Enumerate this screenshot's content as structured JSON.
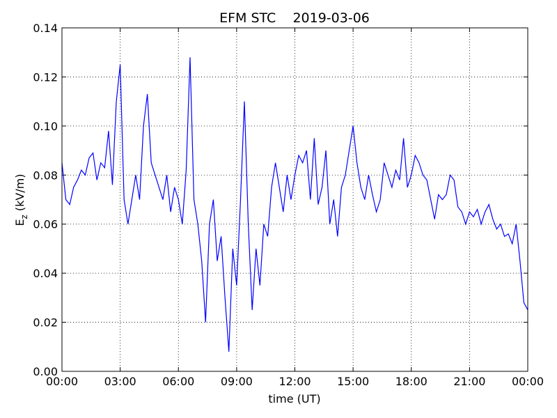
{
  "chart_data": {
    "type": "line",
    "title": "EFM STC    2019-03-06",
    "x_label": "time (UT)",
    "y_label": {
      "main": "E",
      "sub": "z",
      "unit": "(kV/m)"
    },
    "x": [
      0,
      0.2,
      0.4,
      0.6,
      0.8,
      1,
      1.2,
      1.4,
      1.6,
      1.8,
      2,
      2.2,
      2.4,
      2.6,
      2.8,
      3,
      3.2,
      3.4,
      3.6,
      3.8,
      4,
      4.2,
      4.4,
      4.6,
      4.8,
      5,
      5.2,
      5.4,
      5.6,
      5.8,
      6,
      6.2,
      6.4,
      6.6,
      6.8,
      7,
      7.2,
      7.4,
      7.6,
      7.8,
      8,
      8.2,
      8.4,
      8.6,
      8.8,
      9,
      9.2,
      9.4,
      9.6,
      9.8,
      10,
      10.2,
      10.4,
      10.6,
      10.8,
      11,
      11.2,
      11.4,
      11.6,
      11.8,
      12,
      12.2,
      12.4,
      12.6,
      12.8,
      13,
      13.2,
      13.4,
      13.6,
      13.8,
      14,
      14.2,
      14.4,
      14.6,
      14.8,
      15,
      15.2,
      15.4,
      15.6,
      15.8,
      16,
      16.2,
      16.4,
      16.6,
      16.8,
      17,
      17.2,
      17.4,
      17.6,
      17.8,
      18,
      18.2,
      18.4,
      18.6,
      18.8,
      19,
      19.2,
      19.4,
      19.6,
      19.8,
      20,
      20.2,
      20.4,
      20.6,
      20.8,
      21,
      21.2,
      21.4,
      21.6,
      21.8,
      22,
      22.2,
      22.4,
      22.6,
      22.8,
      23,
      23.2,
      23.4,
      23.6,
      23.8,
      24
    ],
    "series": [
      {
        "name": "Ez",
        "color": "#0000ff",
        "values": [
          0.085,
          0.07,
          0.068,
          0.075,
          0.078,
          0.082,
          0.08,
          0.087,
          0.089,
          0.078,
          0.085,
          0.083,
          0.098,
          0.076,
          0.11,
          0.125,
          0.07,
          0.06,
          0.07,
          0.08,
          0.07,
          0.1,
          0.113,
          0.085,
          0.08,
          0.075,
          0.07,
          0.08,
          0.065,
          0.075,
          0.07,
          0.06,
          0.082,
          0.128,
          0.07,
          0.06,
          0.045,
          0.02,
          0.06,
          0.07,
          0.045,
          0.055,
          0.03,
          0.008,
          0.05,
          0.035,
          0.07,
          0.11,
          0.06,
          0.025,
          0.05,
          0.035,
          0.06,
          0.055,
          0.075,
          0.085,
          0.075,
          0.065,
          0.08,
          0.07,
          0.08,
          0.088,
          0.085,
          0.09,
          0.07,
          0.095,
          0.068,
          0.075,
          0.09,
          0.06,
          0.07,
          0.055,
          0.075,
          0.08,
          0.09,
          0.1,
          0.085,
          0.075,
          0.07,
          0.08,
          0.072,
          0.065,
          0.07,
          0.085,
          0.08,
          0.075,
          0.082,
          0.078,
          0.095,
          0.075,
          0.08,
          0.088,
          0.085,
          0.08,
          0.078,
          0.07,
          0.062,
          0.072,
          0.07,
          0.072,
          0.08,
          0.078,
          0.067,
          0.065,
          0.06,
          0.065,
          0.063,
          0.066,
          0.06,
          0.065,
          0.068,
          0.062,
          0.058,
          0.06,
          0.055,
          0.056,
          0.052,
          0.06,
          0.045,
          0.028,
          0.025
        ]
      }
    ],
    "xlim": [
      0,
      24
    ],
    "xticks": [
      {
        "value": 0,
        "label": "00:00"
      },
      {
        "value": 3,
        "label": "03:00"
      },
      {
        "value": 6,
        "label": "06:00"
      },
      {
        "value": 9,
        "label": "09:00"
      },
      {
        "value": 12,
        "label": "12:00"
      },
      {
        "value": 15,
        "label": "15:00"
      },
      {
        "value": 18,
        "label": "18:00"
      },
      {
        "value": 21,
        "label": "21:00"
      },
      {
        "value": 24,
        "label": "00:00"
      }
    ],
    "ylim": [
      0,
      0.14
    ],
    "yticks": [
      {
        "value": 0,
        "label": "0.00"
      },
      {
        "value": 0.02,
        "label": "0.02"
      },
      {
        "value": 0.04,
        "label": "0.04"
      },
      {
        "value": 0.06,
        "label": "0.06"
      },
      {
        "value": 0.08,
        "label": "0.08"
      },
      {
        "value": 0.1,
        "label": "0.10"
      },
      {
        "value": 0.12,
        "label": "0.12"
      },
      {
        "value": 0.14,
        "label": "0.14"
      }
    ],
    "grid": true
  }
}
